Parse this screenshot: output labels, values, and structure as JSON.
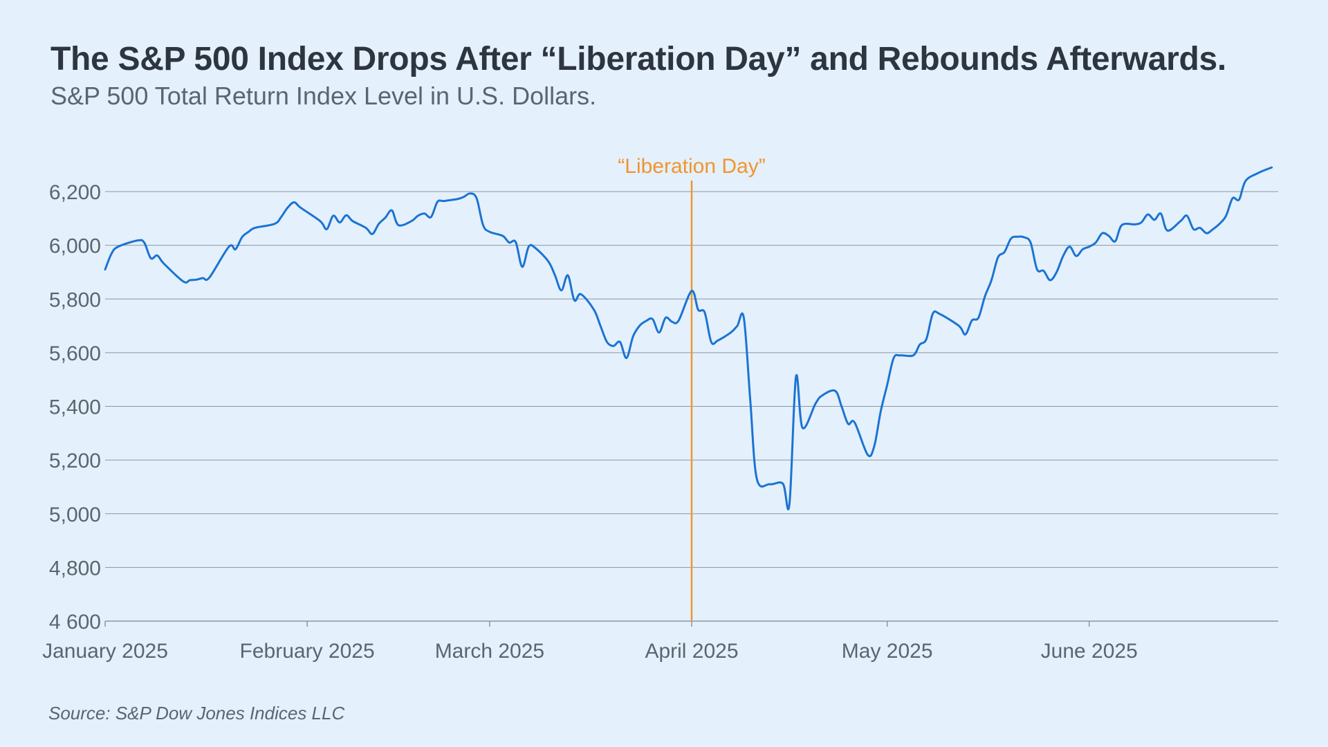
{
  "header": {
    "title": "The S&P 500 Index Drops After “Liberation Day” and Rebounds Afterwards.",
    "subtitle": "S&P 500 Total Return Index Level in U.S. Dollars."
  },
  "footer": {
    "source": "Source: S&P Dow Jones Indices LLC"
  },
  "colors": {
    "background": "#e4f0fb",
    "series_line": "#1a73d4",
    "annotation": "#f0952e",
    "gridline": "#8c96a0",
    "text": "#2c3540"
  },
  "chart_data": {
    "type": "line",
    "title": "The S&P 500 Index Drops After “Liberation Day” and Rebounds Afterwards.",
    "subtitle": "S&P 500 Total Return Index Level in U.S. Dollars.",
    "xlabel": "",
    "ylabel": "",
    "ylim": [
      4600,
      6300
    ],
    "xlim": [
      "2025-01-01",
      "2025-06-30"
    ],
    "grid": "horizontal",
    "legend": "none",
    "y_ticks": [
      {
        "value": 4600,
        "label": "4 600"
      },
      {
        "value": 4800,
        "label": "4,800"
      },
      {
        "value": 5000,
        "label": "5,000"
      },
      {
        "value": 5200,
        "label": "5,200"
      },
      {
        "value": 5400,
        "label": "5,400"
      },
      {
        "value": 5600,
        "label": "5,600"
      },
      {
        "value": 5800,
        "label": "5,800"
      },
      {
        "value": 6000,
        "label": "6,000"
      },
      {
        "value": 6200,
        "label": "6,200"
      }
    ],
    "x_ticks": [
      {
        "date": "2025-01-01",
        "label": "January 2025"
      },
      {
        "date": "2025-02-01",
        "label": "February 2025"
      },
      {
        "date": "2025-03-01",
        "label": "March 2025"
      },
      {
        "date": "2025-04-01",
        "label": "April 2025"
      },
      {
        "date": "2025-05-01",
        "label": "May 2025"
      },
      {
        "date": "2025-06-01",
        "label": "June 2025"
      }
    ],
    "annotations": [
      {
        "date": "2025-04-01",
        "label": "“Liberation Day”"
      }
    ],
    "series": [
      {
        "values": [
          [
            "2025-01-01",
            5910
          ],
          [
            "2025-01-02",
            5970
          ],
          [
            "2025-01-03",
            5995
          ],
          [
            "2025-01-06",
            6018
          ],
          [
            "2025-01-07",
            6010
          ],
          [
            "2025-01-08",
            5952
          ],
          [
            "2025-01-09",
            5962
          ],
          [
            "2025-01-10",
            5932
          ],
          [
            "2025-01-13",
            5865
          ],
          [
            "2025-01-14",
            5870
          ],
          [
            "2025-01-15",
            5872
          ],
          [
            "2025-01-16",
            5878
          ],
          [
            "2025-01-17",
            5880
          ],
          [
            "2025-01-20",
            5995
          ],
          [
            "2025-01-21",
            5985
          ],
          [
            "2025-01-22",
            6030
          ],
          [
            "2025-01-23",
            6050
          ],
          [
            "2025-01-24",
            6065
          ],
          [
            "2025-01-27",
            6080
          ],
          [
            "2025-01-28",
            6105
          ],
          [
            "2025-01-29",
            6140
          ],
          [
            "2025-01-30",
            6160
          ],
          [
            "2025-01-31",
            6140
          ],
          [
            "2025-02-03",
            6090
          ],
          [
            "2025-02-04",
            6060
          ],
          [
            "2025-02-05",
            6110
          ],
          [
            "2025-02-06",
            6085
          ],
          [
            "2025-02-07",
            6112
          ],
          [
            "2025-02-08",
            6090
          ],
          [
            "2025-02-10",
            6065
          ],
          [
            "2025-02-11",
            6042
          ],
          [
            "2025-02-12",
            6080
          ],
          [
            "2025-02-13",
            6103
          ],
          [
            "2025-02-14",
            6130
          ],
          [
            "2025-02-15",
            6075
          ],
          [
            "2025-02-17",
            6090
          ],
          [
            "2025-02-18",
            6110
          ],
          [
            "2025-02-19",
            6118
          ],
          [
            "2025-02-20",
            6105
          ],
          [
            "2025-02-21",
            6162
          ],
          [
            "2025-02-22",
            6165
          ],
          [
            "2025-02-24",
            6172
          ],
          [
            "2025-02-25",
            6180
          ],
          [
            "2025-02-26",
            6193
          ],
          [
            "2025-02-27",
            6175
          ],
          [
            "2025-02-28",
            6075
          ],
          [
            "2025-03-01",
            6050
          ],
          [
            "2025-03-03",
            6035
          ],
          [
            "2025-03-04",
            6010
          ],
          [
            "2025-03-05",
            6012
          ],
          [
            "2025-03-06",
            5920
          ],
          [
            "2025-03-07",
            5995
          ],
          [
            "2025-03-08",
            5990
          ],
          [
            "2025-03-10",
            5940
          ],
          [
            "2025-03-11",
            5890
          ],
          [
            "2025-03-12",
            5832
          ],
          [
            "2025-03-13",
            5888
          ],
          [
            "2025-03-14",
            5795
          ],
          [
            "2025-03-15",
            5818
          ],
          [
            "2025-03-17",
            5760
          ],
          [
            "2025-03-18",
            5700
          ],
          [
            "2025-03-19",
            5640
          ],
          [
            "2025-03-20",
            5625
          ],
          [
            "2025-03-21",
            5640
          ],
          [
            "2025-03-22",
            5580
          ],
          [
            "2025-03-23",
            5660
          ],
          [
            "2025-03-24",
            5700
          ],
          [
            "2025-03-25",
            5718
          ],
          [
            "2025-03-26",
            5725
          ],
          [
            "2025-03-27",
            5675
          ],
          [
            "2025-03-28",
            5730
          ],
          [
            "2025-03-29",
            5715
          ],
          [
            "2025-03-30",
            5720
          ],
          [
            "2025-04-01",
            5830
          ],
          [
            "2025-04-02",
            5760
          ],
          [
            "2025-04-03",
            5750
          ],
          [
            "2025-04-04",
            5640
          ],
          [
            "2025-04-05",
            5645
          ],
          [
            "2025-04-07",
            5675
          ],
          [
            "2025-04-08",
            5700
          ],
          [
            "2025-04-09",
            5730
          ],
          [
            "2025-04-10",
            5420
          ],
          [
            "2025-04-11",
            5130
          ],
          [
            "2025-04-13",
            5110
          ],
          [
            "2025-04-15",
            5112
          ],
          [
            "2025-04-16",
            5035
          ],
          [
            "2025-04-17",
            5510
          ],
          [
            "2025-04-18",
            5320
          ],
          [
            "2025-04-20",
            5410
          ],
          [
            "2025-04-21",
            5440
          ],
          [
            "2025-04-23",
            5458
          ],
          [
            "2025-04-24",
            5400
          ],
          [
            "2025-04-25",
            5335
          ],
          [
            "2025-04-26",
            5340
          ],
          [
            "2025-04-28",
            5220
          ],
          [
            "2025-04-29",
            5250
          ],
          [
            "2025-04-30",
            5380
          ],
          [
            "2025-05-01",
            5480
          ],
          [
            "2025-05-02",
            5580
          ],
          [
            "2025-05-03",
            5590
          ],
          [
            "2025-05-05",
            5590
          ],
          [
            "2025-05-06",
            5630
          ],
          [
            "2025-05-07",
            5650
          ],
          [
            "2025-05-08",
            5745
          ],
          [
            "2025-05-09",
            5745
          ],
          [
            "2025-05-12",
            5700
          ],
          [
            "2025-05-13",
            5668
          ],
          [
            "2025-05-14",
            5720
          ],
          [
            "2025-05-15",
            5730
          ],
          [
            "2025-05-16",
            5810
          ],
          [
            "2025-05-17",
            5870
          ],
          [
            "2025-05-18",
            5955
          ],
          [
            "2025-05-19",
            5975
          ],
          [
            "2025-05-20",
            6025
          ],
          [
            "2025-05-21",
            6032
          ],
          [
            "2025-05-22",
            6030
          ],
          [
            "2025-05-23",
            6010
          ],
          [
            "2025-05-24",
            5910
          ],
          [
            "2025-05-25",
            5905
          ],
          [
            "2025-05-26",
            5870
          ],
          [
            "2025-05-27",
            5900
          ],
          [
            "2025-05-28",
            5960
          ],
          [
            "2025-05-29",
            5995
          ],
          [
            "2025-05-30",
            5960
          ],
          [
            "2025-05-31",
            5985
          ],
          [
            "2025-06-01",
            5995
          ],
          [
            "2025-06-02",
            6010
          ],
          [
            "2025-06-03",
            6045
          ],
          [
            "2025-06-04",
            6035
          ],
          [
            "2025-06-05",
            6015
          ],
          [
            "2025-06-06",
            6075
          ],
          [
            "2025-06-08",
            6078
          ],
          [
            "2025-06-09",
            6085
          ],
          [
            "2025-06-10",
            6115
          ],
          [
            "2025-06-11",
            6095
          ],
          [
            "2025-06-12",
            6118
          ],
          [
            "2025-06-13",
            6055
          ],
          [
            "2025-06-15",
            6090
          ],
          [
            "2025-06-16",
            6110
          ],
          [
            "2025-06-17",
            6060
          ],
          [
            "2025-06-18",
            6065
          ],
          [
            "2025-06-19",
            6045
          ],
          [
            "2025-06-20",
            6060
          ],
          [
            "2025-06-21",
            6080
          ],
          [
            "2025-06-22",
            6110
          ],
          [
            "2025-06-23",
            6175
          ],
          [
            "2025-06-24",
            6170
          ],
          [
            "2025-06-25",
            6240
          ],
          [
            "2025-06-27",
            6270
          ],
          [
            "2025-06-29",
            6290
          ]
        ]
      }
    ]
  }
}
